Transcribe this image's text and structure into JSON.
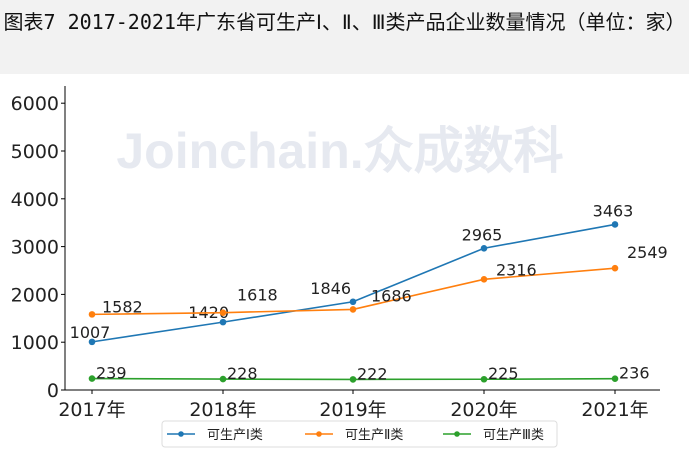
{
  "chart_data": {
    "type": "line",
    "title": "图表7 2017-2021年广东省可生产Ⅰ、Ⅱ、Ⅲ类产品企业数量情况（单位：家）",
    "categories": [
      "2017年",
      "2018年",
      "2019年",
      "2020年",
      "2021年"
    ],
    "ylim": [
      0,
      6400
    ],
    "yticks": [
      0,
      1000,
      2000,
      3000,
      4000,
      5000,
      6000
    ],
    "grid": false,
    "legend_position": "bottom",
    "watermark": "Joinchain.众成数科",
    "series": [
      {
        "name": "可生产Ⅰ类",
        "color": "#1f77b4",
        "values": [
          1007,
          1420,
          1846,
          2965,
          3463
        ]
      },
      {
        "name": "可生产Ⅱ类",
        "color": "#ff7f0e",
        "values": [
          1582,
          1618,
          1686,
          2316,
          2549
        ]
      },
      {
        "name": "可生产Ⅲ类",
        "color": "#2ca02c",
        "values": [
          239,
          228,
          222,
          225,
          236
        ]
      }
    ]
  }
}
